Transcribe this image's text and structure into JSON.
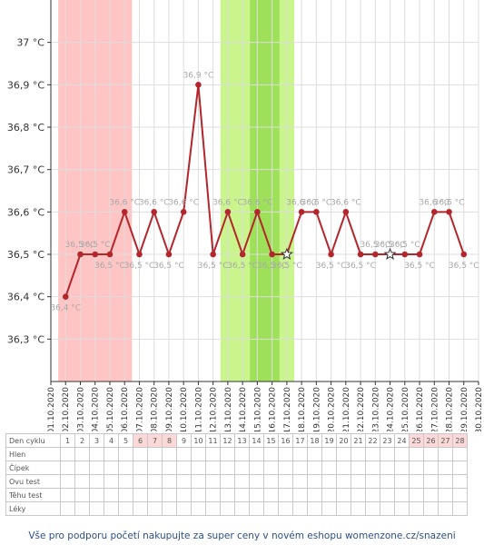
{
  "chart_data": {
    "type": "line",
    "y_ticks": [
      "37 °C",
      "36,9 °C",
      "36,8 °C",
      "36,7 °C",
      "36,6 °C",
      "36,5 °C",
      "36,4 °C",
      "36,3 °C"
    ],
    "y_tick_values": [
      37.0,
      36.9,
      36.8,
      36.7,
      36.6,
      36.5,
      36.4,
      36.3
    ],
    "ylim": [
      36.2,
      37.1
    ],
    "dates": [
      "01.10.2020",
      "02.10.2020",
      "03.10.2020",
      "04.10.2020",
      "05.10.2020",
      "06.10.2020",
      "07.10.2020",
      "08.10.2020",
      "09.10.2020",
      "10.10.2020",
      "11.10.2020",
      "12.10.2020",
      "13.10.2020",
      "14.10.2020",
      "15.10.2020",
      "16.10.2020",
      "17.10.2020",
      "18.10.2020",
      "19.10.2020",
      "20.10.2020",
      "21.10.2020",
      "22.10.2020",
      "23.10.2020",
      "24.10.2020",
      "25.10.2020",
      "26.10.2020",
      "27.10.2020",
      "28.10.2020",
      "29.10.2020",
      "30.10.2020"
    ],
    "points": [
      {
        "date": "02.10.2020",
        "value": 36.4,
        "label": "36,4 °C",
        "marker": "dot"
      },
      {
        "date": "03.10.2020",
        "value": 36.5,
        "label": "36,5 °C",
        "marker": "dot"
      },
      {
        "date": "04.10.2020",
        "value": 36.5,
        "label": "36,5 °C",
        "marker": "dot"
      },
      {
        "date": "05.10.2020",
        "value": 36.5,
        "label": "36,5 °C",
        "marker": "dot"
      },
      {
        "date": "06.10.2020",
        "value": 36.6,
        "label": "36,6 °C",
        "marker": "dot"
      },
      {
        "date": "07.10.2020",
        "value": 36.5,
        "label": "36,5 °C",
        "marker": "dot"
      },
      {
        "date": "08.10.2020",
        "value": 36.6,
        "label": "36,6 °C",
        "marker": "dot"
      },
      {
        "date": "09.10.2020",
        "value": 36.5,
        "label": "36,5 °C",
        "marker": "dot"
      },
      {
        "date": "10.10.2020",
        "value": 36.6,
        "label": "36,6 °C",
        "marker": "dot"
      },
      {
        "date": "11.10.2020",
        "value": 36.9,
        "label": "36,9 °C",
        "marker": "dot"
      },
      {
        "date": "12.10.2020",
        "value": 36.5,
        "label": "36,5 °C",
        "marker": "dot"
      },
      {
        "date": "13.10.2020",
        "value": 36.6,
        "label": "36,6 °C",
        "marker": "dot"
      },
      {
        "date": "14.10.2020",
        "value": 36.5,
        "label": "36,5 °C",
        "marker": "dot"
      },
      {
        "date": "15.10.2020",
        "value": 36.6,
        "label": "36,6 °C",
        "marker": "dot"
      },
      {
        "date": "16.10.2020",
        "value": 36.5,
        "label": "36,5 °C",
        "marker": "dot"
      },
      {
        "date": "17.10.2020",
        "value": 36.5,
        "label": "36,5 °C",
        "marker": "star"
      },
      {
        "date": "18.10.2020",
        "value": 36.6,
        "label": "36,6 °C",
        "marker": "dot"
      },
      {
        "date": "19.10.2020",
        "value": 36.6,
        "label": "36,6 °C",
        "marker": "dot"
      },
      {
        "date": "20.10.2020",
        "value": 36.5,
        "label": "36,5 °C",
        "marker": "dot"
      },
      {
        "date": "21.10.2020",
        "value": 36.6,
        "label": "36,6 °C",
        "marker": "dot"
      },
      {
        "date": "22.10.2020",
        "value": 36.5,
        "label": "36,5 °C",
        "marker": "dot"
      },
      {
        "date": "23.10.2020",
        "value": 36.5,
        "label": "36,5 °C",
        "marker": "dot"
      },
      {
        "date": "24.10.2020",
        "value": 36.5,
        "label": "36,5 °C",
        "marker": "star"
      },
      {
        "date": "25.10.2020",
        "value": 36.5,
        "label": "36,5 °C",
        "marker": "dot"
      },
      {
        "date": "26.10.2020",
        "value": 36.5,
        "label": "36,5 °C",
        "marker": "dot"
      },
      {
        "date": "27.10.2020",
        "value": 36.6,
        "label": "36,6 °C",
        "marker": "dot"
      },
      {
        "date": "28.10.2020",
        "value": 36.6,
        "label": "36,6 °C",
        "marker": "dot"
      },
      {
        "date": "29.10.2020",
        "value": 36.5,
        "label": "36,5 °C",
        "marker": "dot"
      }
    ],
    "bands": [
      {
        "from": "02.10.2020",
        "to": "06.10.2020",
        "color": "#ffc4c4",
        "kind": "menstruation"
      },
      {
        "from": "13.10.2020",
        "to": "17.10.2020",
        "color": "#c9f58c",
        "kind": "fertile"
      },
      {
        "from": "15.10.2020",
        "to": "16.10.2020",
        "color": "#9ee05a",
        "kind": "fertile-peak"
      }
    ],
    "line_color": "#b3262c",
    "grid": true
  },
  "table": {
    "header_label": "Den cyklu",
    "days": [
      1,
      2,
      3,
      4,
      5,
      6,
      7,
      8,
      9,
      10,
      11,
      12,
      13,
      14,
      15,
      16,
      17,
      18,
      19,
      20,
      21,
      22,
      23,
      24,
      25,
      26,
      27,
      28
    ],
    "period_days": [
      6,
      7,
      8,
      25,
      26,
      27,
      28
    ],
    "rows": [
      "Hlen",
      "Čípek",
      "Ovu test",
      "Těhu test",
      "Léky"
    ]
  },
  "footer": "Vše pro podporu početí nakupujte za super ceny v novém eshopu womenzone.cz/snazeni"
}
